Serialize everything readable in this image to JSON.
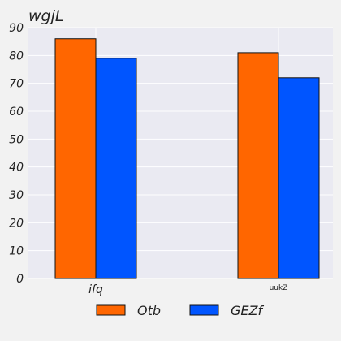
{
  "chart_data": {
    "type": "bar",
    "title": "wgjL",
    "xlabel": "",
    "ylabel": "",
    "categories": [
      "ifq",
      "uukZ"
    ],
    "series": [
      {
        "name": "Otb",
        "values": [
          86,
          81
        ],
        "color": "#ff6600"
      },
      {
        "name": "GEZf",
        "values": [
          79,
          72
        ],
        "color": "#0055ff"
      }
    ],
    "ylim": [
      0,
      90
    ],
    "yticks": [
      0,
      10,
      20,
      30,
      40,
      50,
      60,
      70,
      80,
      90
    ],
    "grid": true,
    "legend_position": "bottom-center"
  },
  "colors": {
    "plot_background": "#eaeaf2",
    "page_background": "#f2f2f2",
    "grid": "#ffffff"
  }
}
